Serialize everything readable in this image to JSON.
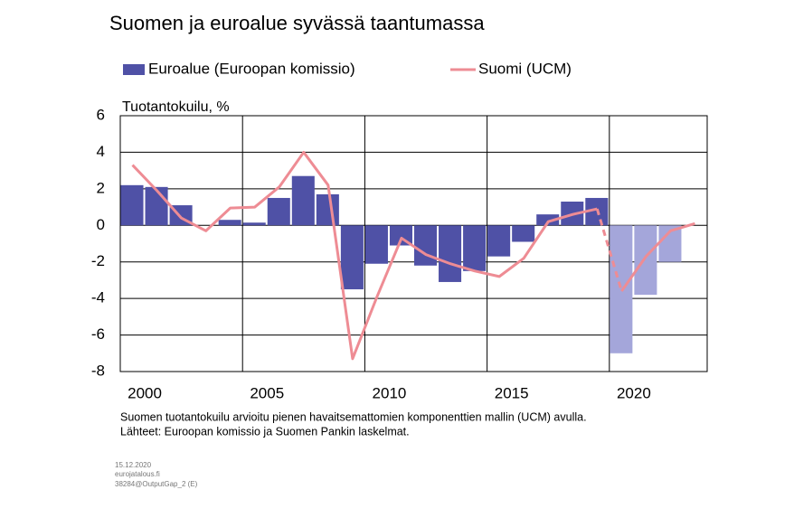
{
  "chart_data": {
    "type": "bar-line",
    "title": "Suomen ja euroalue syvässä taantumassa",
    "y_label": "Tuotantokuilu, %",
    "categories": [
      "2000",
      null,
      null,
      null,
      null,
      "2005",
      null,
      null,
      null,
      null,
      "2010",
      null,
      null,
      null,
      null,
      "2015",
      null,
      null,
      null,
      null,
      "2020",
      null,
      null,
      null
    ],
    "series": [
      {
        "name": "Euroalue (Euroopan komissio)",
        "type": "bar",
        "color": "#4f51a6",
        "colors": [
          "#4f51a6",
          "#4f51a6",
          "#4f51a6",
          "#4f51a6",
          "#4f51a6",
          "#4f51a6",
          "#4f51a6",
          "#4f51a6",
          "#4f51a6",
          "#4f51a6",
          "#4f51a6",
          "#4f51a6",
          "#4f51a6",
          "#4f51a6",
          "#4f51a6",
          "#4f51a6",
          "#4f51a6",
          "#4f51a6",
          "#4f51a6",
          "#4f51a6",
          "#a4a6da",
          "#a4a6da",
          "#a4a6da",
          null
        ],
        "values": [
          2.2,
          2.1,
          1.1,
          0,
          0.3,
          0.15,
          1.5,
          2.7,
          1.7,
          -3.5,
          -2.1,
          -1.1,
          -2.2,
          -3.1,
          -2.5,
          -1.7,
          -0.9,
          0.6,
          1.3,
          1.5,
          -7.0,
          -3.8,
          -2.0,
          null
        ]
      },
      {
        "name": "Suomi (UCM)",
        "type": "line",
        "color": "#ee8c94",
        "values": [
          3.3,
          1.9,
          0.4,
          -0.3,
          0.95,
          1.0,
          2.1,
          4.0,
          2.2,
          -7.3,
          -3.9,
          -0.7,
          -1.6,
          -2.1,
          -2.5,
          -2.8,
          -1.8,
          0.2,
          0.6,
          0.9,
          -3.6,
          -1.7,
          -0.3,
          0.1
        ]
      }
    ],
    "ylim": [
      -8,
      6
    ],
    "yticks": [
      -8,
      -6,
      -4,
      -2,
      0,
      2,
      4,
      6
    ],
    "grid": true,
    "notes": [
      "Suomen tuotantokuilu arvioitu pienen havaitsemattomien komponenttien mallin (UCM) avulla.",
      "Lähteet: Euroopan komissio ja Suomen Pankin laskelmat."
    ],
    "footer": [
      "15.12.2020",
      "eurojatalous.fi",
      "38284@OutputGap_2   (E)"
    ]
  }
}
